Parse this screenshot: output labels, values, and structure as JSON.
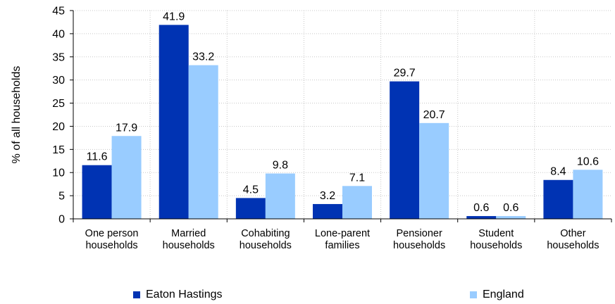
{
  "chart_data": {
    "type": "bar",
    "title": "",
    "xlabel": "",
    "ylabel": "% of all households",
    "ylim": [
      0,
      45
    ],
    "yticks": [
      0,
      5,
      10,
      15,
      20,
      25,
      30,
      35,
      40,
      45
    ],
    "grid": true,
    "legend_position": "bottom",
    "categories": [
      [
        "One person",
        "households"
      ],
      [
        "Married",
        "households"
      ],
      [
        "Cohabiting",
        "households"
      ],
      [
        "Lone-parent",
        "families"
      ],
      [
        "Pensioner",
        "households"
      ],
      [
        "Student",
        "households"
      ],
      [
        "Other",
        "households"
      ]
    ],
    "series": [
      {
        "name": "Eaton Hastings",
        "color": "#0033b3",
        "values": [
          11.6,
          41.9,
          4.5,
          3.2,
          29.7,
          0.6,
          8.4
        ]
      },
      {
        "name": "England",
        "color": "#99ccff",
        "values": [
          17.9,
          33.2,
          9.8,
          7.1,
          20.7,
          0.6,
          10.6
        ]
      }
    ]
  }
}
